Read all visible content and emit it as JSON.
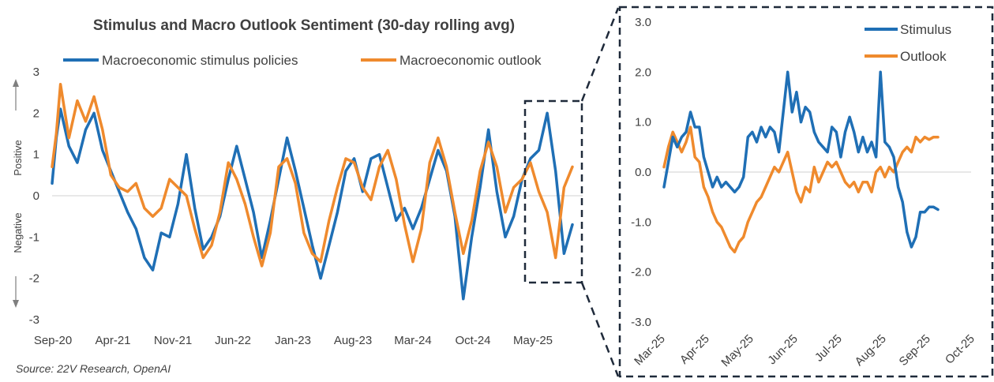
{
  "chart_data": [
    {
      "type": "line",
      "title": "Stimulus and Macro Outlook Sentiment (30-day rolling avg)",
      "xlabel": "",
      "ylabel_top": "Positive",
      "ylabel_bottom": "Negative",
      "ylim": [
        -3,
        3
      ],
      "yticks": [
        "3",
        "2",
        "1",
        "0",
        "-1",
        "-2",
        "-3"
      ],
      "x_ticks": [
        "Sep-20",
        "Apr-21",
        "Nov-21",
        "Jun-22",
        "Jan-23",
        "Aug-23",
        "Mar-24",
        "Oct-24",
        "May-25"
      ],
      "legend_position": "top",
      "grid": false,
      "series": [
        {
          "name": "Macroeconomic stimulus policies",
          "color": "#1f6fb5",
          "x": [
            0,
            0.5,
            1,
            2,
            3,
            4,
            5,
            6,
            7,
            8,
            9,
            10,
            11,
            12,
            13,
            14,
            15,
            16,
            17,
            18,
            19,
            20,
            21,
            22,
            23,
            24,
            25,
            26,
            27,
            28,
            29,
            30,
            31,
            32,
            33,
            34,
            35,
            36,
            37,
            38,
            39,
            40,
            41,
            42,
            43,
            44,
            45,
            46,
            47,
            48,
            49,
            50,
            51,
            52,
            53,
            54,
            55,
            56,
            57,
            58,
            59,
            60,
            61,
            62
          ],
          "values": [
            0.3,
            1.4,
            2.1,
            1.2,
            0.8,
            1.6,
            2.0,
            1.1,
            0.6,
            0.1,
            -0.4,
            -0.8,
            -1.5,
            -1.8,
            -0.9,
            -1.0,
            -0.2,
            1.0,
            -0.3,
            -1.3,
            -1.0,
            -0.5,
            0.4,
            1.2,
            0.4,
            -0.4,
            -1.5,
            -0.6,
            0.4,
            1.4,
            0.6,
            -0.3,
            -1.2,
            -2.0,
            -1.2,
            -0.4,
            0.6,
            0.9,
            0.1,
            0.9,
            1.0,
            0.2,
            -0.6,
            -0.3,
            -0.8,
            -0.3,
            0.4,
            1.1,
            0.6,
            -0.5,
            -2.5,
            -1.0,
            0.2,
            1.6,
            0.1,
            -1.0,
            -0.5,
            0.4,
            0.9,
            1.1,
            2.0,
            0.6,
            -1.4,
            -0.7
          ]
        },
        {
          "name": "Macroeconomic outlook",
          "color": "#ef8a2d",
          "x": [
            0,
            0.5,
            1,
            2,
            3,
            4,
            5,
            6,
            7,
            8,
            9,
            10,
            11,
            12,
            13,
            14,
            15,
            16,
            17,
            18,
            19,
            20,
            21,
            22,
            23,
            24,
            25,
            26,
            27,
            28,
            29,
            30,
            31,
            32,
            33,
            34,
            35,
            36,
            37,
            38,
            39,
            40,
            41,
            42,
            43,
            44,
            45,
            46,
            47,
            48,
            49,
            50,
            51,
            52,
            53,
            54,
            55,
            56,
            57,
            58,
            59,
            60,
            61,
            62
          ],
          "values": [
            0.7,
            1.5,
            2.7,
            1.4,
            2.3,
            1.8,
            2.4,
            1.6,
            0.5,
            0.2,
            0.1,
            0.3,
            -0.3,
            -0.5,
            -0.3,
            0.4,
            0.2,
            0.0,
            -0.8,
            -1.5,
            -1.2,
            -0.4,
            0.8,
            0.4,
            -0.2,
            -1.0,
            -1.7,
            -0.9,
            0.7,
            0.9,
            0.3,
            -0.9,
            -1.4,
            -1.6,
            -0.6,
            0.2,
            0.9,
            0.8,
            0.2,
            -0.1,
            0.7,
            1.1,
            0.4,
            -0.7,
            -1.6,
            -0.8,
            0.8,
            1.4,
            0.7,
            -0.4,
            -1.4,
            -0.6,
            0.6,
            1.3,
            0.7,
            -0.4,
            0.2,
            0.4,
            0.8,
            0.1,
            -0.4,
            -1.5,
            0.2,
            0.7
          ]
        }
      ],
      "source": "Source: 22V Research, OpenAI"
    },
    {
      "type": "line",
      "title": "",
      "ylim": [
        -3,
        3
      ],
      "yticks": [
        "3.0",
        "2.0",
        "1.0",
        "0.0",
        "-1.0",
        "-2.0",
        "-3.0"
      ],
      "x_ticks": [
        "Mar-25",
        "Apr-25",
        "May-25",
        "Jun-25",
        "Jul-25",
        "Aug-25",
        "Sep-25",
        "Oct-25"
      ],
      "legend_position": "top-right",
      "grid": false,
      "series": [
        {
          "name": "Stimulus",
          "color": "#1f6fb5",
          "x": [
            0,
            0.1,
            0.2,
            0.3,
            0.4,
            0.5,
            0.6,
            0.7,
            0.8,
            0.9,
            1.0,
            1.1,
            1.2,
            1.3,
            1.4,
            1.5,
            1.6,
            1.7,
            1.8,
            1.9,
            2.0,
            2.1,
            2.2,
            2.3,
            2.4,
            2.5,
            2.6,
            2.7,
            2.8,
            2.9,
            3.0,
            3.1,
            3.2,
            3.3,
            3.4,
            3.5,
            3.6,
            3.7,
            3.8,
            3.9,
            4.0,
            4.1,
            4.2,
            4.3,
            4.4,
            4.5,
            4.6,
            4.7,
            4.8,
            4.9,
            5.0,
            5.1,
            5.2,
            5.3,
            5.4,
            5.5,
            5.6,
            5.7,
            5.8,
            5.9,
            6.0,
            6.1,
            6.2
          ],
          "values": [
            -0.3,
            0.2,
            0.7,
            0.5,
            0.7,
            0.8,
            1.2,
            0.9,
            0.9,
            0.3,
            0.0,
            -0.3,
            -0.1,
            -0.3,
            -0.2,
            -0.3,
            -0.4,
            -0.3,
            -0.1,
            0.7,
            0.8,
            0.6,
            0.9,
            0.7,
            0.9,
            0.8,
            0.4,
            1.2,
            2.0,
            1.2,
            1.6,
            1.0,
            1.3,
            1.2,
            0.8,
            0.6,
            0.5,
            0.4,
            0.9,
            0.8,
            0.3,
            0.8,
            1.1,
            0.8,
            0.4,
            0.7,
            0.4,
            0.6,
            0.3,
            2.0,
            0.6,
            0.5,
            0.3,
            -0.3,
            -0.6,
            -1.2,
            -1.5,
            -1.3,
            -0.8,
            -0.8,
            -0.7,
            -0.7,
            -0.75
          ]
        },
        {
          "name": "Outlook",
          "color": "#ef8a2d",
          "x": [
            0,
            0.1,
            0.2,
            0.3,
            0.4,
            0.5,
            0.6,
            0.7,
            0.8,
            0.9,
            1.0,
            1.1,
            1.2,
            1.3,
            1.4,
            1.5,
            1.6,
            1.7,
            1.8,
            1.9,
            2.0,
            2.1,
            2.2,
            2.3,
            2.4,
            2.5,
            2.6,
            2.7,
            2.8,
            2.9,
            3.0,
            3.1,
            3.2,
            3.3,
            3.4,
            3.5,
            3.6,
            3.7,
            3.8,
            3.9,
            4.0,
            4.1,
            4.2,
            4.3,
            4.4,
            4.5,
            4.6,
            4.7,
            4.8,
            4.9,
            5.0,
            5.1,
            5.2,
            5.3,
            5.4,
            5.5,
            5.6,
            5.7,
            5.8,
            5.9,
            6.0,
            6.1,
            6.2
          ],
          "values": [
            0.1,
            0.5,
            0.8,
            0.6,
            0.4,
            0.6,
            0.9,
            0.3,
            0.2,
            -0.3,
            -0.5,
            -0.8,
            -1.0,
            -1.1,
            -1.3,
            -1.5,
            -1.6,
            -1.4,
            -1.3,
            -1.0,
            -0.8,
            -0.6,
            -0.5,
            -0.3,
            -0.1,
            0.1,
            0.0,
            0.2,
            0.4,
            0.0,
            -0.4,
            -0.6,
            -0.3,
            -0.4,
            0.1,
            -0.2,
            0.0,
            0.2,
            0.1,
            0.2,
            0.0,
            -0.2,
            -0.3,
            -0.2,
            -0.4,
            -0.2,
            -0.2,
            -0.4,
            0.0,
            0.1,
            -0.1,
            0.1,
            0.0,
            0.2,
            0.4,
            0.5,
            0.4,
            0.7,
            0.6,
            0.7,
            0.65,
            0.7,
            0.7
          ]
        }
      ]
    }
  ]
}
